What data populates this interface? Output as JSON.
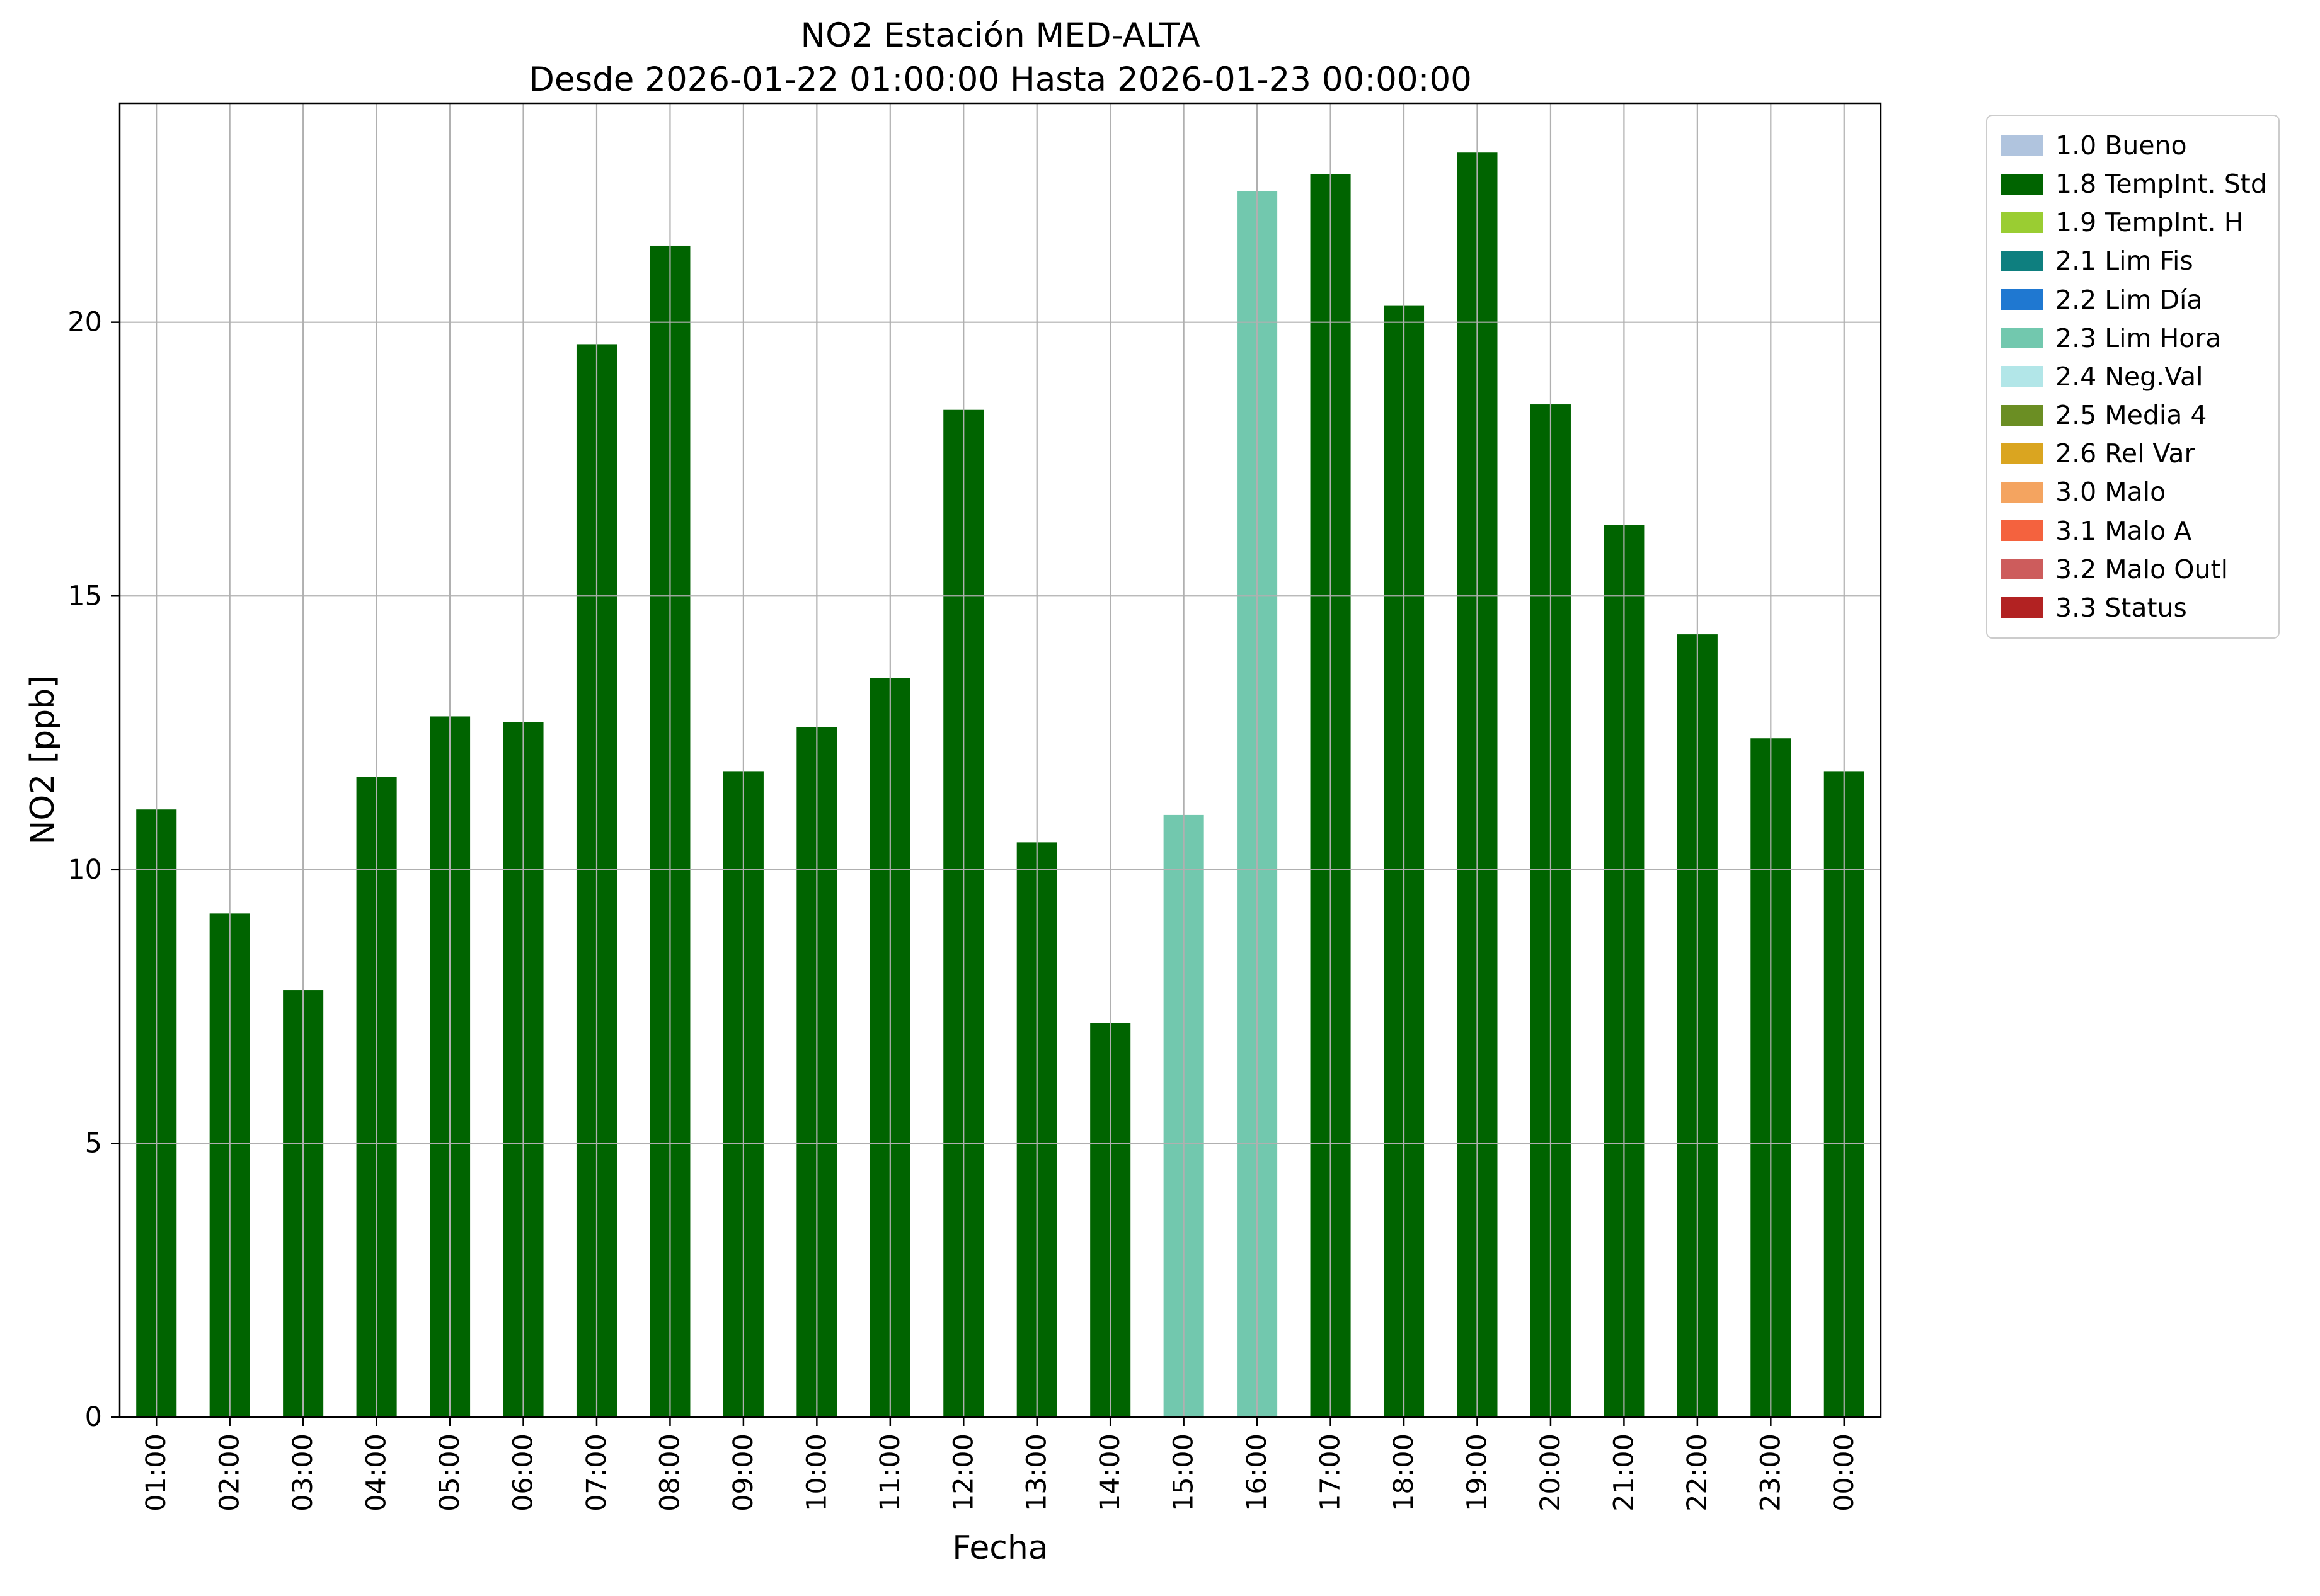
{
  "chart_data": {
    "type": "bar",
    "title": "NO2 Estación MED-ALTA",
    "subtitle": "Desde 2026-01-22 01:00:00 Hasta 2026-01-23 00:00:00",
    "xlabel": "Fecha",
    "ylabel": "NO2 [ppb]",
    "ylim": [
      0,
      24
    ],
    "yticks": [
      0,
      5,
      10,
      15,
      20
    ],
    "grid": true,
    "grid_color": "#b0b0b0",
    "background": "#ffffff",
    "categories": [
      "01:00",
      "02:00",
      "03:00",
      "04:00",
      "05:00",
      "06:00",
      "07:00",
      "08:00",
      "09:00",
      "10:00",
      "11:00",
      "12:00",
      "13:00",
      "14:00",
      "15:00",
      "16:00",
      "17:00",
      "18:00",
      "19:00",
      "20:00",
      "21:00",
      "22:00",
      "23:00",
      "00:00"
    ],
    "values": [
      11.1,
      9.2,
      7.8,
      11.7,
      12.8,
      12.7,
      19.6,
      21.4,
      11.8,
      12.6,
      13.5,
      18.4,
      10.5,
      7.2,
      11.0,
      22.4,
      22.7,
      20.3,
      23.1,
      18.5,
      16.3,
      14.3,
      12.4,
      11.8
    ],
    "bar_flags": [
      "1.8",
      "1.8",
      "1.8",
      "1.8",
      "1.8",
      "1.8",
      "1.8",
      "1.8",
      "1.8",
      "1.8",
      "1.8",
      "1.8",
      "1.8",
      "1.8",
      "2.3",
      "2.3",
      "1.8",
      "1.8",
      "1.8",
      "1.8",
      "1.8",
      "1.8",
      "1.8",
      "1.8"
    ],
    "legend": {
      "position": "outside-upper-right",
      "entries": [
        {
          "code": "1.0",
          "label": "1.0 Bueno",
          "color": "#b0c4de"
        },
        {
          "code": "1.8",
          "label": "1.8 TempInt. Std",
          "color": "#006400"
        },
        {
          "code": "1.9",
          "label": "1.9 TempInt. H",
          "color": "#9acd32"
        },
        {
          "code": "2.1",
          "label": "2.1 Lim Fis",
          "color": "#0e7f7f"
        },
        {
          "code": "2.2",
          "label": "2.2 Lim Día",
          "color": "#1f78d1"
        },
        {
          "code": "2.3",
          "label": "2.3 Lim Hora",
          "color": "#72c8ae"
        },
        {
          "code": "2.4",
          "label": "2.4 Neg.Val",
          "color": "#b2e6e8"
        },
        {
          "code": "2.5",
          "label": "2.5 Media 4",
          "color": "#6b8e23"
        },
        {
          "code": "2.6",
          "label": "2.6 Rel Var",
          "color": "#daa520"
        },
        {
          "code": "3.0",
          "label": "3.0 Malo",
          "color": "#f4a460"
        },
        {
          "code": "3.1",
          "label": "3.1 Malo A",
          "color": "#f4623e"
        },
        {
          "code": "3.2",
          "label": "3.2 Malo Outl",
          "color": "#cd5c5c"
        },
        {
          "code": "3.3",
          "label": "3.3 Status",
          "color": "#b22222"
        }
      ]
    }
  }
}
